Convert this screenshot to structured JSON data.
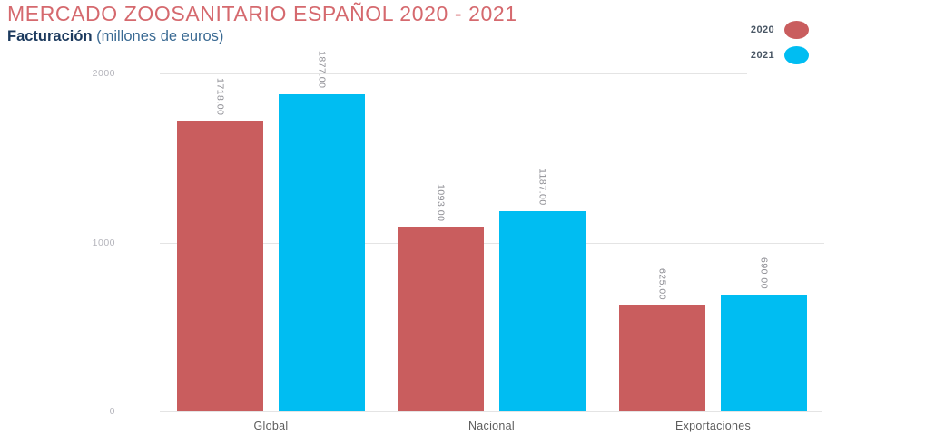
{
  "title": "MERCADO ZOOSANITARIO ESPAÑOL 2020 - 2021",
  "subtitle": {
    "bold": "Facturación",
    "rest": " (millones de euros)"
  },
  "legend": {
    "items": [
      {
        "label": "2020"
      },
      {
        "label": "2021"
      }
    ]
  },
  "colors": {
    "title": "#d5696e",
    "subtitle_bold": "#1c3a5e",
    "subtitle_rest": "#3a6a93",
    "series_2020": "#c95d5e",
    "series_2021": "#00bdf2",
    "gridline": "#e4e4e4",
    "tick_label": "#b4b4bb",
    "value_label": "#8f8f95",
    "category_label": "#5d5d5d",
    "legend_label": "#4a5765"
  },
  "chart_data": {
    "type": "bar",
    "title": "MERCADO ZOOSANITARIO ESPAÑOL 2020 - 2021",
    "subtitle": "Facturación (millones de euros)",
    "categories": [
      "Global",
      "Nacional",
      "Exportaciones"
    ],
    "series": [
      {
        "name": "2020",
        "values": [
          1718,
          1093,
          625
        ]
      },
      {
        "name": "2021",
        "values": [
          1877,
          1187,
          690
        ]
      }
    ],
    "value_labels": [
      [
        "1718.00",
        "1093.00",
        "625.00"
      ],
      [
        "1877.00",
        "1187.00",
        "690.00"
      ]
    ],
    "yticks": [
      2000,
      1000,
      0
    ],
    "ylim": [
      0,
      2000
    ],
    "grid": true,
    "legend_position": "top-right",
    "value_label_rotation": 90
  }
}
